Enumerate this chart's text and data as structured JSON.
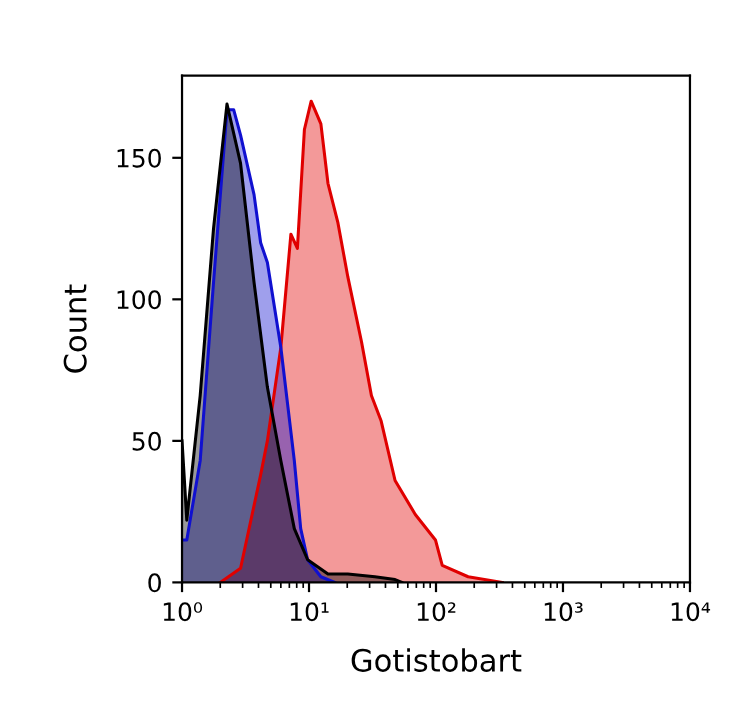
{
  "chart_data": {
    "type": "area",
    "xlabel": "Gotistobart",
    "ylabel": "Count",
    "log": "x",
    "xlim": [
      1,
      10000
    ],
    "ylim": [
      0,
      179
    ],
    "xticks": [
      {
        "value": 1,
        "label": "10⁰"
      },
      {
        "value": 10,
        "label": "10¹"
      },
      {
        "value": 100,
        "label": "10²"
      },
      {
        "value": 1000,
        "label": "10³"
      },
      {
        "value": 10000,
        "label": "10⁴"
      }
    ],
    "yticks": [
      0,
      50,
      100,
      150
    ],
    "grid": false,
    "series": [
      {
        "color": "#e00000",
        "x": [
          2.0,
          2.89,
          4.16,
          4.7,
          6.0,
          7.2,
          8.1,
          9.2,
          10.4,
          12.4,
          14.1,
          16.9,
          20.2,
          25.9,
          31,
          37,
          47.6,
          68.7,
          99,
          112,
          179,
          333
        ],
        "values": [
          0,
          5,
          38,
          50,
          83,
          123,
          118,
          160,
          170,
          162,
          141,
          127,
          108,
          85,
          66,
          57,
          36,
          24,
          15,
          6,
          2,
          0
        ]
      },
      {
        "color": "#1010d0",
        "x": [
          1.0,
          1.09,
          1.39,
          1.77,
          2.26,
          2.55,
          2.89,
          3.69,
          4.16,
          4.7,
          6.0,
          7.66,
          8.6,
          9.75,
          12.4,
          15.9
        ],
        "values": [
          15,
          15,
          43,
          106,
          167,
          167,
          158,
          137,
          120,
          113,
          83,
          43,
          19,
          8,
          2,
          0
        ]
      },
      {
        "color": "#000000",
        "x": [
          1.0,
          1.09,
          1.39,
          1.77,
          2.26,
          2.89,
          3.69,
          4.7,
          6.0,
          7.66,
          9.75,
          14.1,
          20.2,
          33,
          47.6,
          53.7
        ],
        "values": [
          50,
          22,
          66,
          125,
          169,
          148,
          106,
          69,
          43,
          19,
          8,
          3,
          3,
          2,
          1,
          0
        ]
      }
    ]
  }
}
